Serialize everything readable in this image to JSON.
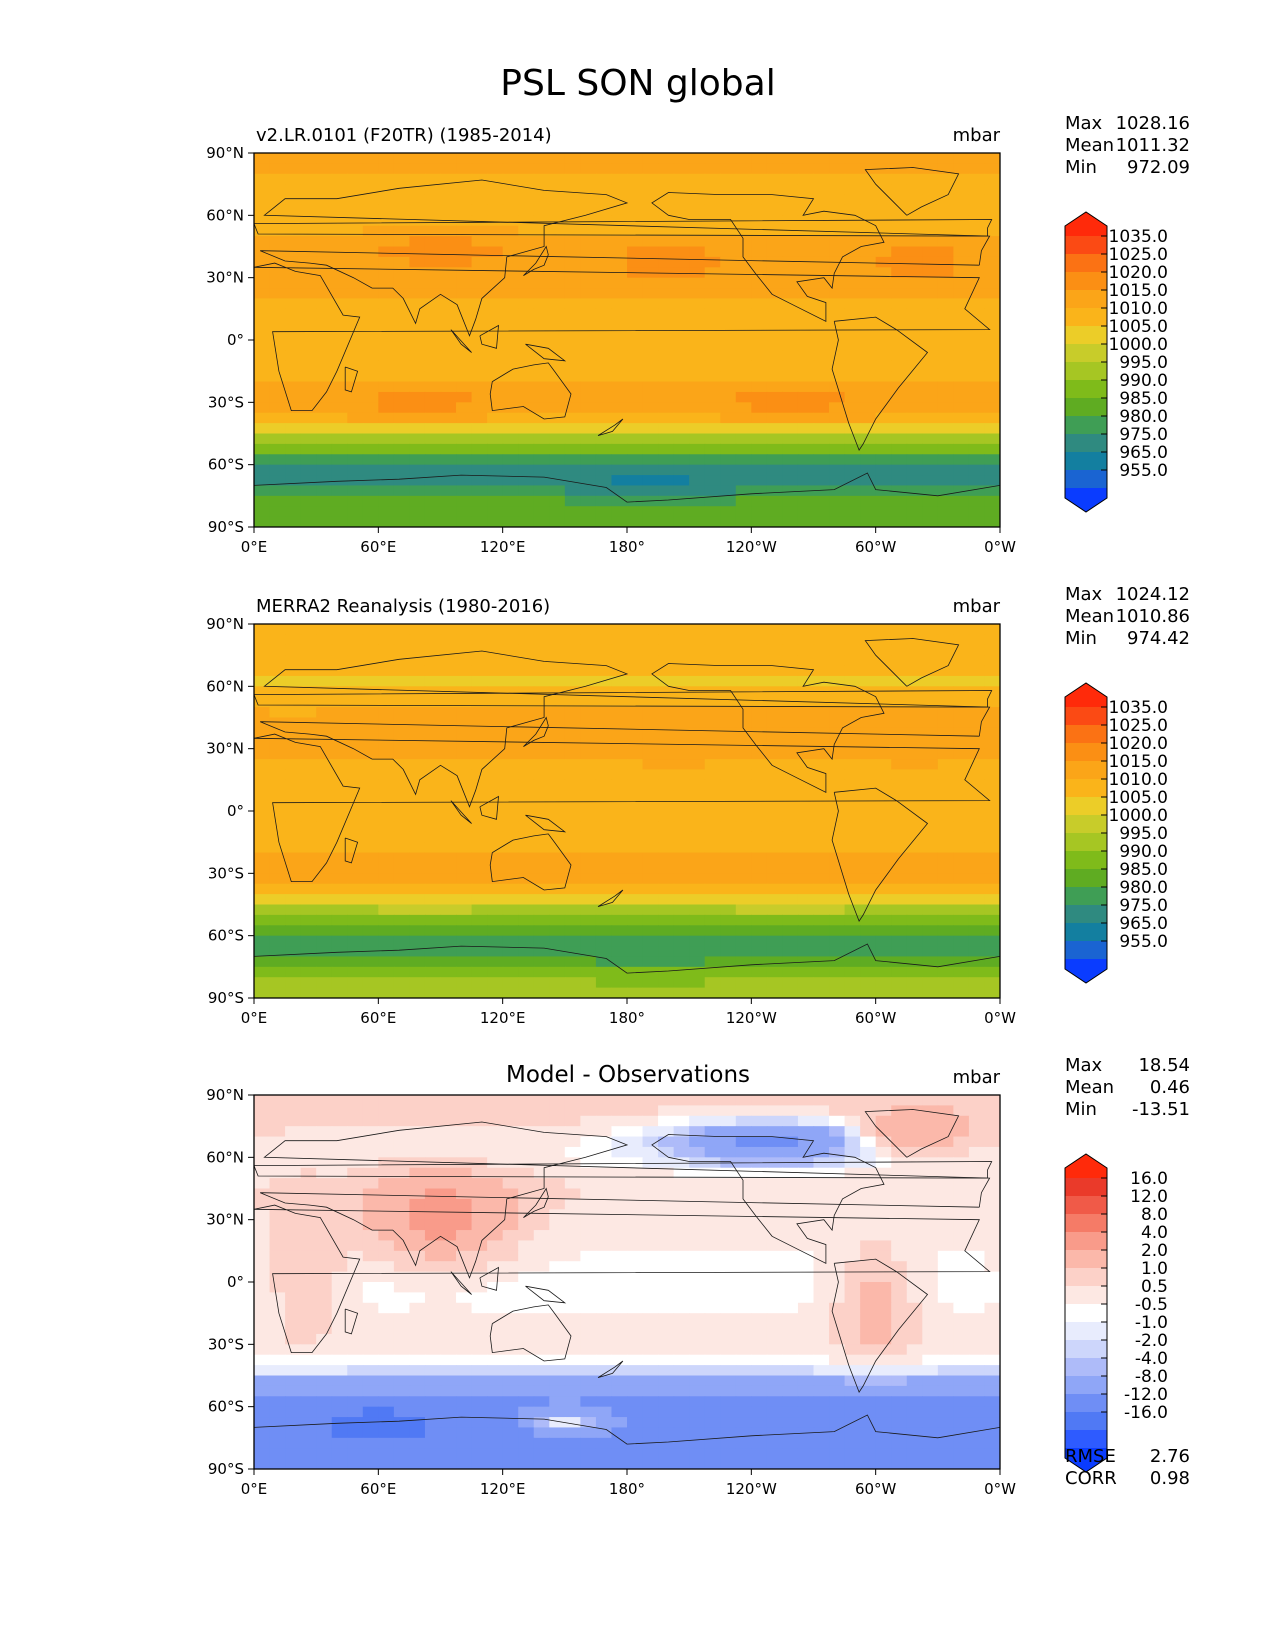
{
  "figure_title": "PSL SON global",
  "colors": {
    "abs_levels": [
      "#0a3cff",
      "#1a64d2",
      "#137fa0",
      "#2f8a80",
      "#3f9e55",
      "#5fac22",
      "#7fbb1a",
      "#a6c623",
      "#c8cc2a",
      "#eccd28",
      "#fab41a",
      "#fba518",
      "#fb8f14",
      "#fb7214",
      "#fb4a14",
      "#ff2a0a"
    ],
    "diff_levels": [
      "#0a3cff",
      "#2e5bff",
      "#5079f4",
      "#6f8ef5",
      "#8fa6f7",
      "#aebbf9",
      "#cdd6fb",
      "#e8ecfd",
      "#ffffff",
      "#fde8e3",
      "#fcd1c8",
      "#fbb8aa",
      "#f99b8a",
      "#f57b67",
      "#f05a48",
      "#ea3a2a",
      "#ff2a0a"
    ],
    "land_outline": "#1a1a1a"
  },
  "chart_data": [
    {
      "type": "heatmap",
      "title": "",
      "subtitle_left": "v2.LR.0101 (F20TR) (1985-2014)",
      "units": "mbar",
      "xlabel": "",
      "ylabel": "",
      "x_ticks": [
        "0°E",
        "60°E",
        "120°E",
        "180°",
        "120°W",
        "60°W",
        "0°W"
      ],
      "y_ticks": [
        "90°N",
        "60°N",
        "30°N",
        "0°",
        "30°S",
        "60°S",
        "90°S"
      ],
      "xlim": [
        0,
        360
      ],
      "ylim": [
        -90,
        90
      ],
      "stats": [
        {
          "label": "Max",
          "value": "1028.16"
        },
        {
          "label": "Mean",
          "value": "1011.32"
        },
        {
          "label": "Min",
          "value": "972.09"
        }
      ],
      "colorbar_labels": [
        "1035.0",
        "1025.0",
        "1020.0",
        "1015.0",
        "1010.0",
        "1005.0",
        "1000.0",
        "995.0",
        "990.0",
        "985.0",
        "980.0",
        "975.0",
        "965.0",
        "955.0"
      ],
      "mode": "model",
      "zonal_profile": {
        "lat": [
          90,
          75,
          60,
          45,
          30,
          15,
          0,
          -15,
          -30,
          -40,
          -50,
          -60,
          -70,
          -80,
          -90
        ],
        "value": [
          1016,
          1014,
          1010,
          1018,
          1017,
          1013,
          1011,
          1013,
          1019,
          1012,
          995,
          978,
          980,
          988,
          988
        ]
      }
    },
    {
      "type": "heatmap",
      "title": "",
      "subtitle_left": "MERRA2 Reanalysis (1980-2016)",
      "units": "mbar",
      "xlabel": "",
      "ylabel": "",
      "x_ticks": [
        "0°E",
        "60°E",
        "120°E",
        "180°",
        "120°W",
        "60°W",
        "0°W"
      ],
      "y_ticks": [
        "90°N",
        "60°N",
        "30°N",
        "0°",
        "30°S",
        "60°S",
        "90°S"
      ],
      "xlim": [
        0,
        360
      ],
      "ylim": [
        -90,
        90
      ],
      "stats": [
        {
          "label": "Max",
          "value": "1024.12"
        },
        {
          "label": "Mean",
          "value": "1010.86"
        },
        {
          "label": "Min",
          "value": "974.42"
        }
      ],
      "colorbar_labels": [
        "1035.0",
        "1025.0",
        "1020.0",
        "1015.0",
        "1010.0",
        "1005.0",
        "1000.0",
        "995.0",
        "990.0",
        "985.0",
        "980.0",
        "975.0",
        "965.0",
        "955.0"
      ],
      "mode": "obs",
      "zonal_profile": {
        "lat": [
          90,
          75,
          60,
          45,
          30,
          15,
          0,
          -15,
          -30,
          -40,
          -50,
          -60,
          -70,
          -80,
          -90
        ],
        "value": [
          1013,
          1012,
          1009,
          1016,
          1016,
          1012,
          1011,
          1013,
          1017,
          1011,
          996,
          983,
          984,
          995,
          996
        ]
      }
    },
    {
      "type": "heatmap",
      "title": "Model - Observations",
      "subtitle_left": "",
      "units": "mbar",
      "xlabel": "",
      "ylabel": "",
      "x_ticks": [
        "0°E",
        "60°E",
        "120°E",
        "180°",
        "120°W",
        "60°W",
        "0°W"
      ],
      "y_ticks": [
        "90°N",
        "60°N",
        "30°N",
        "0°",
        "30°S",
        "60°S",
        "90°S"
      ],
      "xlim": [
        0,
        360
      ],
      "ylim": [
        -90,
        90
      ],
      "stats": [
        {
          "label": "Max",
          "value": "18.54"
        },
        {
          "label": "Mean",
          "value": "0.46"
        },
        {
          "label": "Min",
          "value": "-13.51"
        }
      ],
      "colorbar_labels": [
        "16.0",
        "12.0",
        "8.0",
        "4.0",
        "2.0",
        "1.0",
        "0.5",
        "-0.5",
        "-1.0",
        "-2.0",
        "-4.0",
        "-8.0",
        "-12.0",
        "-16.0"
      ],
      "metrics": [
        {
          "label": "RMSE",
          "value": "2.76"
        },
        {
          "label": "CORR",
          "value": "0.98"
        }
      ],
      "mode": "diff",
      "zonal_profile": {
        "lat": [
          90,
          75,
          60,
          45,
          30,
          15,
          0,
          -15,
          -30,
          -40,
          -50,
          -60,
          -70,
          -80,
          -90
        ],
        "value": [
          3,
          2,
          1,
          2,
          1.5,
          1,
          0.7,
          1,
          1.5,
          0.3,
          -3,
          -5,
          -5,
          -7,
          -8
        ]
      }
    }
  ]
}
